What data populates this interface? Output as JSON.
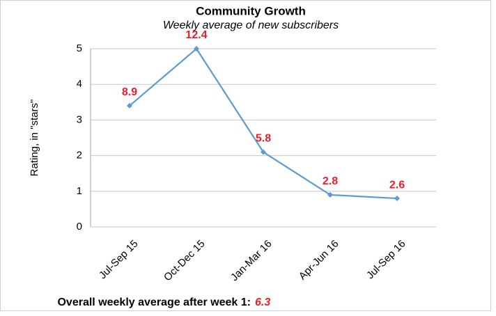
{
  "chart_data": {
    "type": "line",
    "title": "Community Growth",
    "subtitle": "Weekly average of new subscribers",
    "y_label": "Rating, in \"stars\"",
    "categories": [
      "Jul-Sep 15",
      "Oct-Dec 15",
      "Jan-Mar 16",
      "Apr-Jun 16",
      "Jul-Sep 16"
    ],
    "series": [
      {
        "name": "Rating",
        "color": "#5b9bd5",
        "values": [
          3.4,
          5.0,
          2.1,
          0.9,
          0.8
        ]
      }
    ],
    "point_annotations": [
      "8.9",
      "12.4",
      "5.8",
      "2.8",
      "2.6"
    ],
    "annotation_color": "#e8202a",
    "ylim": [
      0,
      5
    ],
    "yticks": [
      0,
      1,
      2,
      3,
      4,
      5
    ],
    "grid": true,
    "footnote": {
      "text": "Overall weekly  average after week 1:",
      "value": "6.3"
    }
  }
}
